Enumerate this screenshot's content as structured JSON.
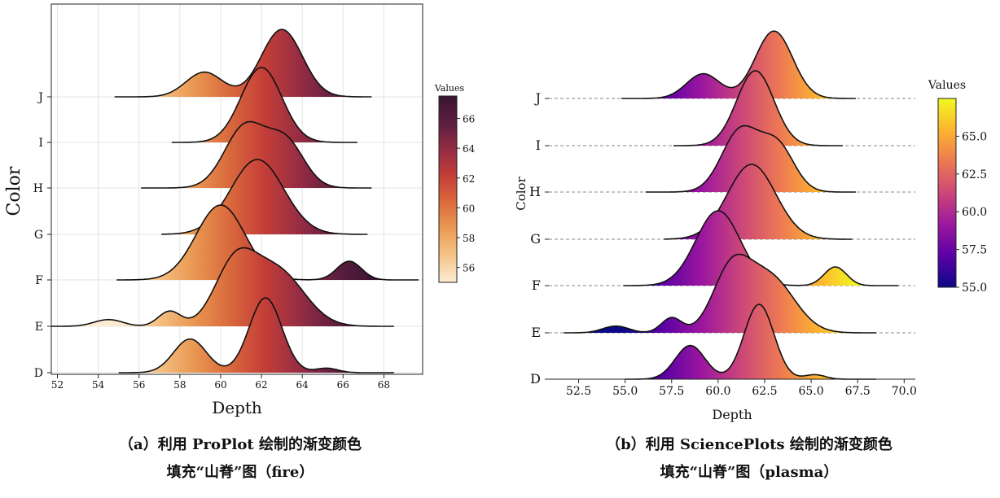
{
  "captions": {
    "a_line1": "（a）利用 ProPlot 绘制的渐变颜色",
    "a_line2": "填充“山脊”图（fire）",
    "b_line1": "（b）利用 SciencePlots 绘制的渐变颜色",
    "b_line2": "填充“山脊”图（plasma）"
  },
  "chart_data": [
    {
      "type": "ridgeline",
      "panel": "a",
      "style": "ProPlot",
      "colormap": "fire",
      "xlabel": "Depth",
      "ylabel": "Color",
      "xlim": [
        51.7,
        69.9
      ],
      "xticks": [
        52,
        54,
        56,
        58,
        60,
        62,
        64,
        66,
        68
      ],
      "grid": true,
      "categories": [
        "D",
        "E",
        "F",
        "G",
        "H",
        "I",
        "J"
      ],
      "colorbar": {
        "title": "Values",
        "range": [
          55,
          67.5
        ],
        "ticks": [
          56,
          58,
          60,
          62,
          64,
          66
        ],
        "colors": [
          "#fbecd2",
          "#f5c58a",
          "#ea9a54",
          "#da6b3d",
          "#c43e38",
          "#942c44",
          "#5c1e3f",
          "#3a1530"
        ]
      },
      "series": [
        {
          "category": "D",
          "range": [
            55.0,
            68.5
          ],
          "peaks": [
            {
              "mean": 58.5,
              "sd": 0.8,
              "h": 0.45
            },
            {
              "mean": 62.2,
              "sd": 0.8,
              "h": 1.0
            },
            {
              "mean": 65.2,
              "sd": 0.55,
              "h": 0.06
            }
          ]
        },
        {
          "category": "E",
          "range": [
            51.7,
            68.5
          ],
          "peaks": [
            {
              "mean": 54.5,
              "sd": 0.7,
              "h": 0.09
            },
            {
              "mean": 57.5,
              "sd": 0.55,
              "h": 0.2
            },
            {
              "mean": 60.7,
              "sd": 1.0,
              "h": 0.8
            },
            {
              "mean": 62.8,
              "sd": 1.3,
              "h": 0.73
            }
          ]
        },
        {
          "category": "F",
          "range": [
            54.9,
            69.7
          ],
          "peaks": [
            {
              "mean": 60.0,
              "sd": 1.2,
              "h": 1.0
            },
            {
              "mean": 66.3,
              "sd": 0.6,
              "h": 0.25
            }
          ]
        },
        {
          "category": "G",
          "range": [
            57.1,
            67.2
          ],
          "peaks": [
            {
              "mean": 61.8,
              "sd": 1.3,
              "h": 1.0
            }
          ]
        },
        {
          "category": "H",
          "range": [
            56.1,
            67.4
          ],
          "peaks": [
            {
              "mean": 61.2,
              "sd": 1.0,
              "h": 0.82
            },
            {
              "mean": 63.2,
              "sd": 0.9,
              "h": 0.6
            }
          ]
        },
        {
          "category": "I",
          "range": [
            57.6,
            66.7
          ],
          "peaks": [
            {
              "mean": 62.0,
              "sd": 1.0,
              "h": 1.0
            }
          ]
        },
        {
          "category": "J",
          "range": [
            54.8,
            67.4
          ],
          "peaks": [
            {
              "mean": 59.2,
              "sd": 0.9,
              "h": 0.33
            },
            {
              "mean": 63.0,
              "sd": 1.0,
              "h": 0.9
            }
          ]
        }
      ]
    },
    {
      "type": "ridgeline",
      "panel": "b",
      "style": "SciencePlots",
      "colormap": "plasma",
      "xlabel": "Depth",
      "ylabel": "Color",
      "xlim": [
        50.9,
        70.6
      ],
      "xticks": [
        52.5,
        55.0,
        57.5,
        60.0,
        62.5,
        65.0,
        67.5,
        70.0
      ],
      "grid": false,
      "baseline": "dashed",
      "categories": [
        "D",
        "E",
        "F",
        "G",
        "H",
        "I",
        "J"
      ],
      "colorbar": {
        "title": "Values",
        "range": [
          55,
          67.5
        ],
        "ticks": [
          55.0,
          57.5,
          60.0,
          62.5,
          65.0
        ],
        "colors": [
          "#0d0887",
          "#5c01a6",
          "#9c179e",
          "#cc4778",
          "#ed7953",
          "#fdb42f",
          "#f0f921"
        ]
      },
      "series": [
        {
          "category": "D",
          "range": [
            55.0,
            68.5
          ],
          "peaks": [
            {
              "mean": 58.5,
              "sd": 0.8,
              "h": 0.45
            },
            {
              "mean": 62.2,
              "sd": 0.8,
              "h": 1.0
            },
            {
              "mean": 65.2,
              "sd": 0.55,
              "h": 0.06
            }
          ]
        },
        {
          "category": "E",
          "range": [
            51.7,
            68.5
          ],
          "peaks": [
            {
              "mean": 54.5,
              "sd": 0.7,
              "h": 0.09
            },
            {
              "mean": 57.5,
              "sd": 0.55,
              "h": 0.2
            },
            {
              "mean": 60.7,
              "sd": 1.0,
              "h": 0.8
            },
            {
              "mean": 62.8,
              "sd": 1.3,
              "h": 0.73
            }
          ]
        },
        {
          "category": "F",
          "range": [
            54.9,
            69.7
          ],
          "peaks": [
            {
              "mean": 60.0,
              "sd": 1.2,
              "h": 1.0
            },
            {
              "mean": 66.3,
              "sd": 0.6,
              "h": 0.25
            }
          ]
        },
        {
          "category": "G",
          "range": [
            57.1,
            67.2
          ],
          "peaks": [
            {
              "mean": 61.8,
              "sd": 1.3,
              "h": 1.0
            }
          ]
        },
        {
          "category": "H",
          "range": [
            56.1,
            67.4
          ],
          "peaks": [
            {
              "mean": 61.2,
              "sd": 1.0,
              "h": 0.82
            },
            {
              "mean": 63.2,
              "sd": 0.9,
              "h": 0.6
            }
          ]
        },
        {
          "category": "I",
          "range": [
            57.6,
            66.7
          ],
          "peaks": [
            {
              "mean": 62.0,
              "sd": 1.0,
              "h": 1.0
            }
          ]
        },
        {
          "category": "J",
          "range": [
            54.8,
            67.4
          ],
          "peaks": [
            {
              "mean": 59.2,
              "sd": 0.9,
              "h": 0.33
            },
            {
              "mean": 63.0,
              "sd": 1.0,
              "h": 0.9
            }
          ]
        }
      ]
    }
  ]
}
